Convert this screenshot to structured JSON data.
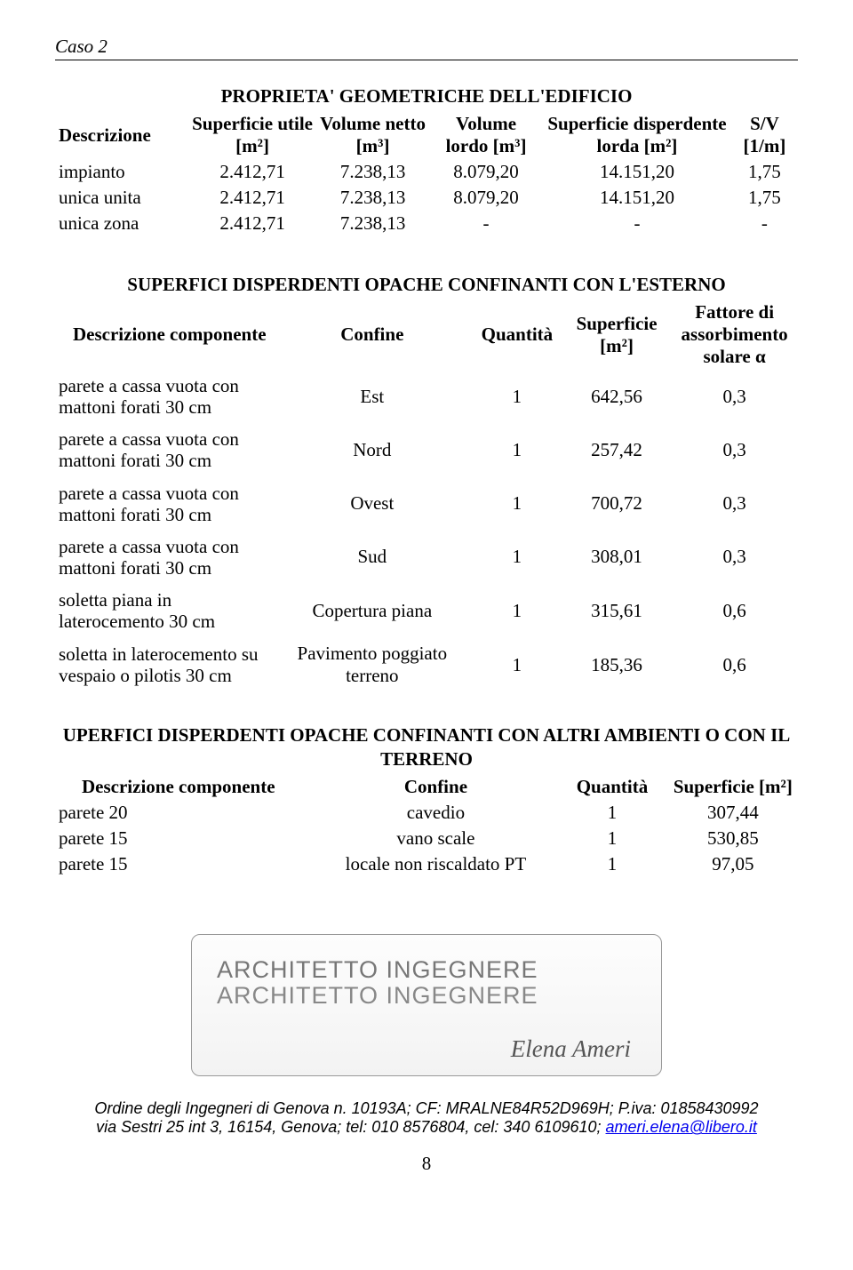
{
  "header": {
    "case": "Caso 2"
  },
  "table1": {
    "title": "PROPRIETA' GEOMETRICHE DELL'EDIFICIO",
    "headers": [
      "Descrizione",
      "Superficie utile [m²]",
      "Volume netto [m³]",
      "Volume lordo [m³]",
      "Superficie disperdente lorda [m²]",
      "S/V [1/m]"
    ],
    "rows": [
      [
        "impianto",
        "2.412,71",
        "7.238,13",
        "8.079,20",
        "14.151,20",
        "1,75"
      ],
      [
        "unica unita",
        "2.412,71",
        "7.238,13",
        "8.079,20",
        "14.151,20",
        "1,75"
      ],
      [
        "unica zona",
        "2.412,71",
        "7.238,13",
        "-",
        "-",
        "-"
      ]
    ]
  },
  "table2": {
    "title": "SUPERFICI DISPERDENTI OPACHE CONFINANTI CON L'ESTERNO",
    "headers": [
      "Descrizione componente",
      "Confine",
      "Quantità",
      "Superficie [m²]",
      "Fattore di assorbimento solare α"
    ],
    "rows": [
      [
        "parete a cassa vuota con mattoni forati 30 cm",
        "Est",
        "1",
        "642,56",
        "0,3"
      ],
      [
        "parete a cassa vuota con mattoni forati 30 cm",
        "Nord",
        "1",
        "257,42",
        "0,3"
      ],
      [
        "parete a cassa vuota con mattoni forati 30 cm",
        "Ovest",
        "1",
        "700,72",
        "0,3"
      ],
      [
        "parete a cassa vuota con mattoni forati 30 cm",
        "Sud",
        "1",
        "308,01",
        "0,3"
      ],
      [
        "soletta piana in laterocemento 30 cm",
        "Copertura piana",
        "1",
        "315,61",
        "0,6"
      ],
      [
        "soletta in laterocemento su vespaio o pilotis 30 cm",
        "Pavimento poggiato terreno",
        "1",
        "185,36",
        "0,6"
      ]
    ]
  },
  "table3": {
    "title_line1": "UPERFICI DISPERDENTI OPACHE CONFINANTI CON ALTRI AMBIENTI O CON IL",
    "title_line2": "TERRENO",
    "headers": [
      "Descrizione componente",
      "Confine",
      "Quantità",
      "Superficie [m²]"
    ],
    "rows": [
      [
        "parete 20",
        "cavedio",
        "1",
        "307,44"
      ],
      [
        "parete 15",
        "vano scale",
        "1",
        "530,85"
      ],
      [
        "parete 15",
        "locale non riscaldato PT",
        "1",
        "97,05"
      ]
    ]
  },
  "stamp": {
    "line1": "ARCHITETTO INGEGNERE",
    "line2": "ARCHITETTO INGEGNERE",
    "signature": "Elena Ameri"
  },
  "footer": {
    "line1_a": "Ordine degli Ingegneri di Genova n. 10193A; CF: MRALNE84R52D969H; P.iva: 01858430992",
    "line2_a": "via Sestri 25 int 3, 16154, Genova; tel: 010 8576804, cel: 340 6109610; ",
    "email": "ameri.elena@libero.it",
    "page": "8"
  }
}
